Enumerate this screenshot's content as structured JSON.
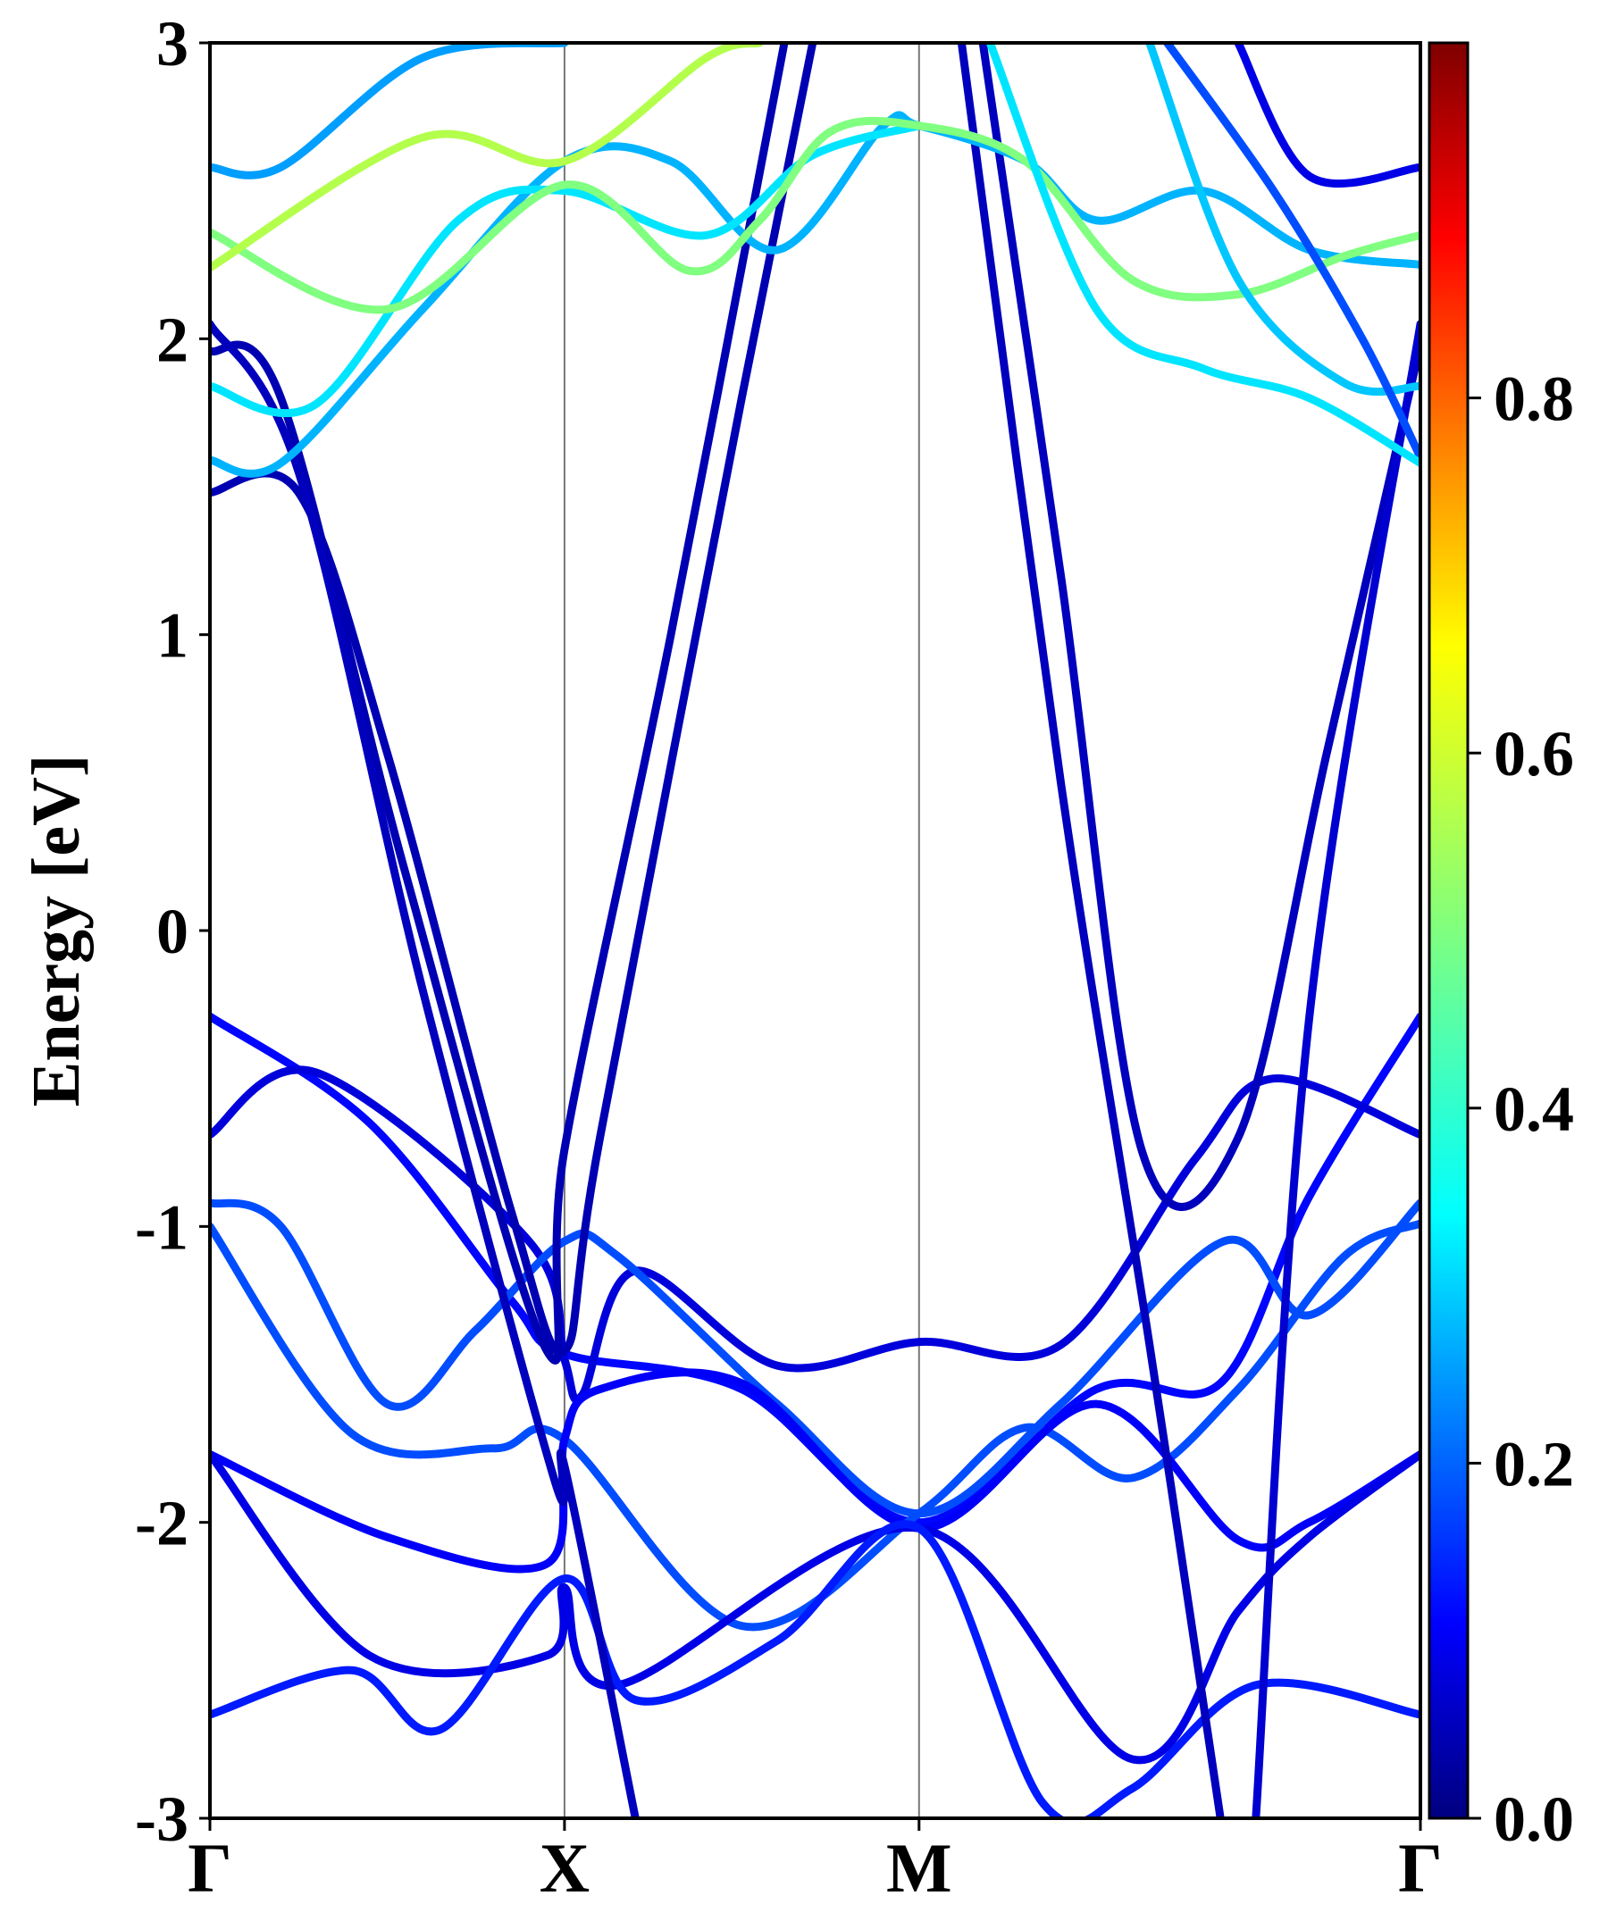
{
  "chart_data": {
    "type": "line",
    "title": "",
    "xlabel": "",
    "ylabel": "Energy [eV]",
    "ylim": [
      -3,
      3
    ],
    "y_ticks": [
      "3",
      "2",
      "1",
      "0",
      "-1",
      "-2",
      "-3"
    ],
    "y_tick_values": [
      3,
      2,
      1,
      0,
      -1,
      -2,
      -3
    ],
    "grid": false,
    "high_symmetry_points": [
      {
        "label": "Γ",
        "x": 0
      },
      {
        "label": "X",
        "x": 1
      },
      {
        "label": "M",
        "x": 2
      },
      {
        "label": "Γ",
        "x": 3.414
      }
    ],
    "colorbar": {
      "colormap": "jet",
      "range": [
        0.0,
        1.0
      ],
      "tick_labels": [
        "0.8",
        "0.6",
        "0.4",
        "0.2",
        "0.0"
      ],
      "tick_values": [
        0.8,
        0.6,
        0.4,
        0.2,
        0.0
      ],
      "placement": "right"
    },
    "series": [
      {
        "color_value": 0.13,
        "points": [
          [
            0,
            -0.29
          ],
          [
            0.45,
            -0.65
          ],
          [
            0.85,
            -1.25
          ],
          [
            1,
            -1.43
          ],
          [
            1.5,
            -1.55
          ],
          [
            2,
            -2.0
          ],
          [
            2.5,
            -1.55
          ],
          [
            2.85,
            -1.53
          ],
          [
            3.1,
            -0.9
          ],
          [
            3.414,
            -0.29
          ]
        ]
      },
      {
        "color_value": 0.09,
        "points": [
          [
            0,
            -0.69
          ],
          [
            0.3,
            -0.48
          ],
          [
            0.9,
            -1.05
          ],
          [
            1,
            -1.45
          ],
          [
            1.05,
            -1.57
          ],
          [
            1.2,
            -1.15
          ],
          [
            1.6,
            -1.47
          ],
          [
            2,
            -1.39
          ],
          [
            2.4,
            -1.4
          ],
          [
            2.78,
            -0.77
          ],
          [
            3.0,
            -0.5
          ],
          [
            3.414,
            -0.69
          ]
        ]
      },
      {
        "color_value": 0.2,
        "points": [
          [
            0,
            -0.92
          ],
          [
            0.2,
            -1.0
          ],
          [
            0.5,
            -1.6
          ],
          [
            0.75,
            -1.35
          ],
          [
            1,
            -1.05
          ],
          [
            1.15,
            -1.1
          ],
          [
            1.6,
            -1.6
          ],
          [
            2,
            -1.97
          ],
          [
            2.4,
            -1.6
          ],
          [
            2.86,
            -1.05
          ],
          [
            3.1,
            -1.3
          ],
          [
            3.414,
            -0.92
          ]
        ]
      },
      {
        "color_value": 0.2,
        "points": [
          [
            0,
            -1.0
          ],
          [
            0.4,
            -1.7
          ],
          [
            0.8,
            -1.75
          ],
          [
            1,
            -1.72
          ],
          [
            1.5,
            -2.35
          ],
          [
            2,
            -1.97
          ],
          [
            2.3,
            -1.68
          ],
          [
            2.6,
            -1.85
          ],
          [
            2.9,
            -1.55
          ],
          [
            3.2,
            -1.1
          ],
          [
            3.414,
            -0.99
          ]
        ]
      },
      {
        "color_value": 0.12,
        "points": [
          [
            0,
            -1.77
          ],
          [
            0.5,
            -2.05
          ],
          [
            0.95,
            -2.14
          ],
          [
            1,
            -1.72
          ],
          [
            1.1,
            -1.55
          ],
          [
            1.5,
            -1.53
          ],
          [
            2,
            -2.02
          ],
          [
            2.5,
            -1.6
          ],
          [
            2.9,
            -2.06
          ],
          [
            3.1,
            -2.0
          ],
          [
            3.414,
            -1.77
          ]
        ]
      },
      {
        "color_value": 0.1,
        "points": [
          [
            0,
            -1.77
          ],
          [
            0.45,
            -2.45
          ],
          [
            0.95,
            -2.45
          ],
          [
            1,
            -2.22
          ],
          [
            1.15,
            -2.55
          ],
          [
            2,
            -2.02
          ],
          [
            2.6,
            -2.8
          ],
          [
            2.9,
            -2.3
          ],
          [
            3.1,
            -2.05
          ],
          [
            3.414,
            -1.77
          ]
        ]
      },
      {
        "color_value": 0.15,
        "points": [
          [
            0,
            -2.65
          ],
          [
            0.4,
            -2.5
          ],
          [
            0.65,
            -2.7
          ],
          [
            1,
            -2.19
          ],
          [
            1.2,
            -2.6
          ],
          [
            1.6,
            -2.4
          ],
          [
            2,
            -2.02
          ],
          [
            2.35,
            -2.95
          ],
          [
            2.6,
            -2.9
          ],
          [
            2.95,
            -2.55
          ],
          [
            3.414,
            -2.65
          ]
        ]
      },
      {
        "color_value": 0.05,
        "points": [
          [
            0,
            1.48
          ],
          [
            0.25,
            1.48
          ],
          [
            0.5,
            0.6
          ],
          [
            0.85,
            -0.95
          ],
          [
            1,
            -1.42
          ],
          [
            1.1,
            -0.7
          ],
          [
            1.5,
            1.8
          ],
          [
            1.7,
            3.0
          ]
        ]
      },
      {
        "color_value": 0.05,
        "points": [
          [
            0,
            1.96
          ],
          [
            0.2,
            1.8
          ],
          [
            0.55,
            0.2
          ],
          [
            0.95,
            -1.42
          ],
          [
            1,
            -0.74
          ],
          [
            1.3,
            1.0
          ],
          [
            1.62,
            3.0
          ]
        ]
      },
      {
        "color_value": 0.06,
        "points": [
          [
            0,
            2.05
          ],
          [
            0.25,
            1.55
          ],
          [
            0.6,
            -0.2
          ],
          [
            0.97,
            -1.85
          ],
          [
            1,
            -1.81
          ],
          [
            1.2,
            -3.0
          ]
        ]
      },
      {
        "color_value": 0.06,
        "points": [
          [
            2.18,
            3.0
          ],
          [
            2.4,
            1.2
          ],
          [
            2.63,
            -0.75
          ],
          [
            2.9,
            -0.7
          ],
          [
            3.15,
            0.6
          ],
          [
            3.414,
            1.98
          ]
        ]
      },
      {
        "color_value": 0.06,
        "points": [
          [
            2.12,
            3.0
          ],
          [
            2.4,
            0.5
          ],
          [
            2.65,
            -1.4
          ],
          [
            2.85,
            -3.0
          ]
        ]
      },
      {
        "color_value": 0.08,
        "points": [
          [
            2.95,
            -3.0
          ],
          [
            3.1,
            -0.3
          ],
          [
            3.414,
            2.05
          ]
        ]
      },
      {
        "color_value": 0.3,
        "points": [
          [
            0,
            1.59
          ],
          [
            0.2,
            1.58
          ],
          [
            0.6,
            2.1
          ],
          [
            1,
            2.6
          ],
          [
            1.3,
            2.6
          ],
          [
            1.6,
            2.3
          ],
          [
            1.9,
            2.72
          ],
          [
            2,
            2.72
          ],
          [
            2.3,
            2.6
          ],
          [
            2.5,
            2.4
          ],
          [
            2.8,
            2.5
          ],
          [
            3.1,
            2.3
          ],
          [
            3.414,
            2.25
          ]
        ]
      },
      {
        "color_value": 0.35,
        "points": [
          [
            0,
            1.84
          ],
          [
            0.3,
            1.78
          ],
          [
            0.7,
            2.4
          ],
          [
            1,
            2.5
          ],
          [
            1.4,
            2.35
          ],
          [
            1.7,
            2.62
          ],
          [
            2,
            2.72
          ]
        ]
      },
      {
        "color_value": 0.5,
        "points": [
          [
            0,
            2.36
          ],
          [
            0.5,
            2.1
          ],
          [
            1,
            2.52
          ],
          [
            1.35,
            2.23
          ],
          [
            1.55,
            2.4
          ],
          [
            1.75,
            2.7
          ],
          [
            2,
            2.72
          ],
          [
            2.3,
            2.6
          ],
          [
            2.6,
            2.2
          ],
          [
            2.9,
            2.15
          ],
          [
            3.2,
            2.28
          ],
          [
            3.414,
            2.35
          ]
        ]
      },
      {
        "color_value": 0.55,
        "points": [
          [
            0,
            2.24
          ],
          [
            0.6,
            2.68
          ],
          [
            1,
            2.6
          ],
          [
            1.4,
            2.95
          ],
          [
            1.55,
            3.0
          ]
        ]
      },
      {
        "color_value": 0.28,
        "points": [
          [
            0,
            2.58
          ],
          [
            0.2,
            2.58
          ],
          [
            0.6,
            2.95
          ],
          [
            1,
            3.0
          ]
        ]
      },
      {
        "color_value": 0.32,
        "points": [
          [
            2.65,
            3.0
          ],
          [
            2.9,
            2.2
          ],
          [
            3.2,
            1.85
          ],
          [
            3.414,
            1.84
          ]
        ]
      },
      {
        "color_value": 0.2,
        "points": [
          [
            2.7,
            3.0
          ],
          [
            3.0,
            2.5
          ],
          [
            3.25,
            2.0
          ],
          [
            3.414,
            1.6
          ]
        ]
      },
      {
        "color_value": 0.35,
        "points": [
          [
            2.2,
            3.0
          ],
          [
            2.5,
            2.1
          ],
          [
            2.8,
            1.9
          ],
          [
            3.1,
            1.8
          ],
          [
            3.414,
            1.58
          ]
        ]
      },
      {
        "color_value": 0.1,
        "points": [
          [
            2.9,
            3.0
          ],
          [
            3.1,
            2.55
          ],
          [
            3.414,
            2.58
          ]
        ]
      }
    ]
  }
}
